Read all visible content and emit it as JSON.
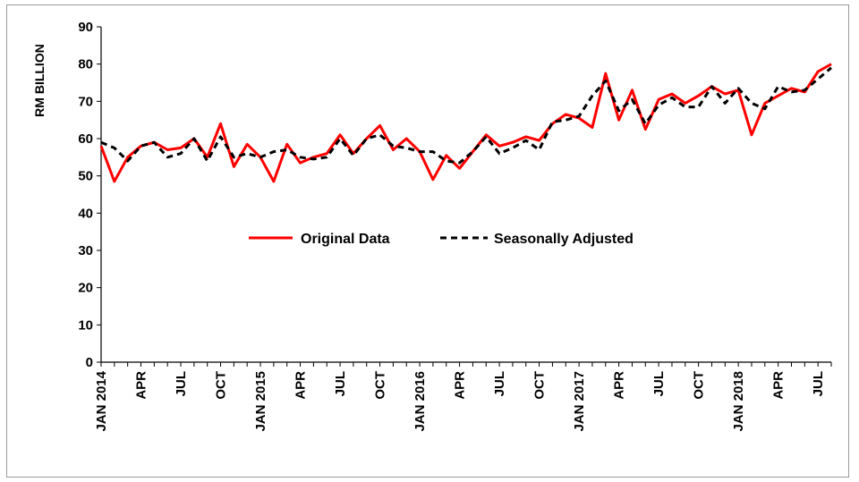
{
  "chart_data": {
    "type": "line",
    "title": "",
    "ylabel": "RM BILLION",
    "xlabel": "",
    "ylim": [
      0,
      90
    ],
    "yticks": [
      0,
      10,
      20,
      30,
      40,
      50,
      60,
      70,
      80,
      90
    ],
    "grid": false,
    "legend_position": "center",
    "x_tick_labels": [
      {
        "index": 0,
        "label": "JAN 2014"
      },
      {
        "index": 3,
        "label": "APR"
      },
      {
        "index": 6,
        "label": "JUL"
      },
      {
        "index": 9,
        "label": "OCT"
      },
      {
        "index": 12,
        "label": "JAN 2015"
      },
      {
        "index": 15,
        "label": "APR"
      },
      {
        "index": 18,
        "label": "JUL"
      },
      {
        "index": 21,
        "label": "OCT"
      },
      {
        "index": 24,
        "label": "JAN 2016"
      },
      {
        "index": 27,
        "label": "APR"
      },
      {
        "index": 30,
        "label": "JUL"
      },
      {
        "index": 33,
        "label": "OCT"
      },
      {
        "index": 36,
        "label": "JAN 2017"
      },
      {
        "index": 39,
        "label": "APR"
      },
      {
        "index": 42,
        "label": "JUL"
      },
      {
        "index": 45,
        "label": "OCT"
      },
      {
        "index": 48,
        "label": "JAN 2018"
      },
      {
        "index": 51,
        "label": "APR"
      },
      {
        "index": 54,
        "label": "JUL"
      }
    ],
    "x": [
      "2014-01",
      "2014-02",
      "2014-03",
      "2014-04",
      "2014-05",
      "2014-06",
      "2014-07",
      "2014-08",
      "2014-09",
      "2014-10",
      "2014-11",
      "2014-12",
      "2015-01",
      "2015-02",
      "2015-03",
      "2015-04",
      "2015-05",
      "2015-06",
      "2015-07",
      "2015-08",
      "2015-09",
      "2015-10",
      "2015-11",
      "2015-12",
      "2016-01",
      "2016-02",
      "2016-03",
      "2016-04",
      "2016-05",
      "2016-06",
      "2016-07",
      "2016-08",
      "2016-09",
      "2016-10",
      "2016-11",
      "2016-12",
      "2017-01",
      "2017-02",
      "2017-03",
      "2017-04",
      "2017-05",
      "2017-06",
      "2017-07",
      "2017-08",
      "2017-09",
      "2017-10",
      "2017-11",
      "2017-12",
      "2018-01",
      "2018-02",
      "2018-03",
      "2018-04",
      "2018-05",
      "2018-06",
      "2018-07",
      "2018-08"
    ],
    "series": [
      {
        "name": "Original Data",
        "color": "#ff0000",
        "style": "solid",
        "values": [
          58,
          48.5,
          55,
          58,
          59,
          57,
          57.5,
          60,
          55,
          64,
          52.5,
          58.5,
          55,
          48.5,
          58.5,
          53.5,
          55,
          56,
          61,
          56,
          60,
          63.5,
          57,
          60,
          56.5,
          49,
          55.5,
          52,
          56.5,
          61,
          58,
          59,
          60.5,
          59.5,
          64,
          66.5,
          65.5,
          63,
          77.5,
          65,
          73,
          62.5,
          70.5,
          72,
          69.5,
          71.5,
          74,
          72,
          73,
          61,
          69.5,
          71.5,
          73.5,
          72.5,
          78,
          80
        ]
      },
      {
        "name": "Seasonally Adjusted",
        "color": "#000000",
        "style": "dashed",
        "values": [
          59,
          57.5,
          54,
          58,
          59,
          55,
          56,
          60,
          54,
          60.5,
          55,
          56,
          55,
          56.5,
          57,
          55,
          54.5,
          55,
          60,
          55.5,
          60,
          61,
          58,
          57.5,
          56.5,
          56.5,
          54,
          53.5,
          56.5,
          60.5,
          56,
          57.5,
          59.5,
          57,
          64.5,
          65,
          66,
          71.5,
          75.5,
          67.5,
          70.5,
          64,
          69,
          71,
          68.5,
          68.5,
          74,
          69.5,
          73.5,
          69.5,
          68,
          74,
          72.5,
          73,
          76,
          79
        ]
      }
    ]
  }
}
